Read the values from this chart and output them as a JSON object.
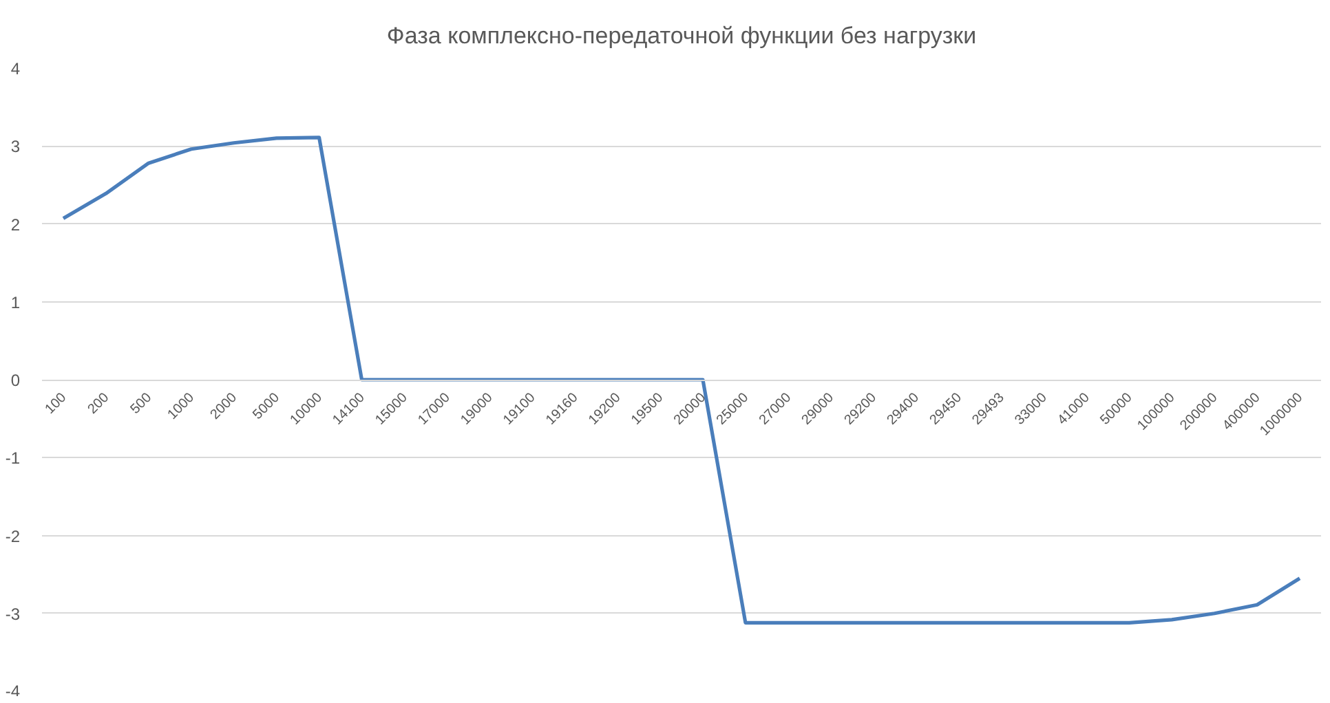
{
  "chart_data": {
    "type": "line",
    "title": "Фаза комплексно-передаточной функции без нагрузки",
    "categories": [
      "100",
      "200",
      "500",
      "1000",
      "2000",
      "5000",
      "10000",
      "14100",
      "15000",
      "17000",
      "19000",
      "19100",
      "19160",
      "19200",
      "19500",
      "20000",
      "25000",
      "27000",
      "29000",
      "29200",
      "29400",
      "29450",
      "29493",
      "33000",
      "41000",
      "50000",
      "100000",
      "200000",
      "400000",
      "1000000"
    ],
    "series": [
      {
        "color": "#4a7ebb",
        "values": [
          2.07,
          2.39,
          2.78,
          2.96,
          3.04,
          3.1,
          3.11,
          0,
          0,
          0,
          0,
          0,
          0,
          0,
          0,
          0,
          -3.12,
          -3.12,
          -3.12,
          -3.12,
          -3.12,
          -3.12,
          -3.12,
          -3.12,
          -3.12,
          -3.12,
          -3.08,
          -3.0,
          -2.89,
          -2.55
        ]
      }
    ],
    "ylim": [
      -4,
      4
    ],
    "yticks": [
      -4,
      -3,
      -2,
      -1,
      0,
      1,
      2,
      3,
      4
    ],
    "grid": "y",
    "line_style": "solid"
  }
}
